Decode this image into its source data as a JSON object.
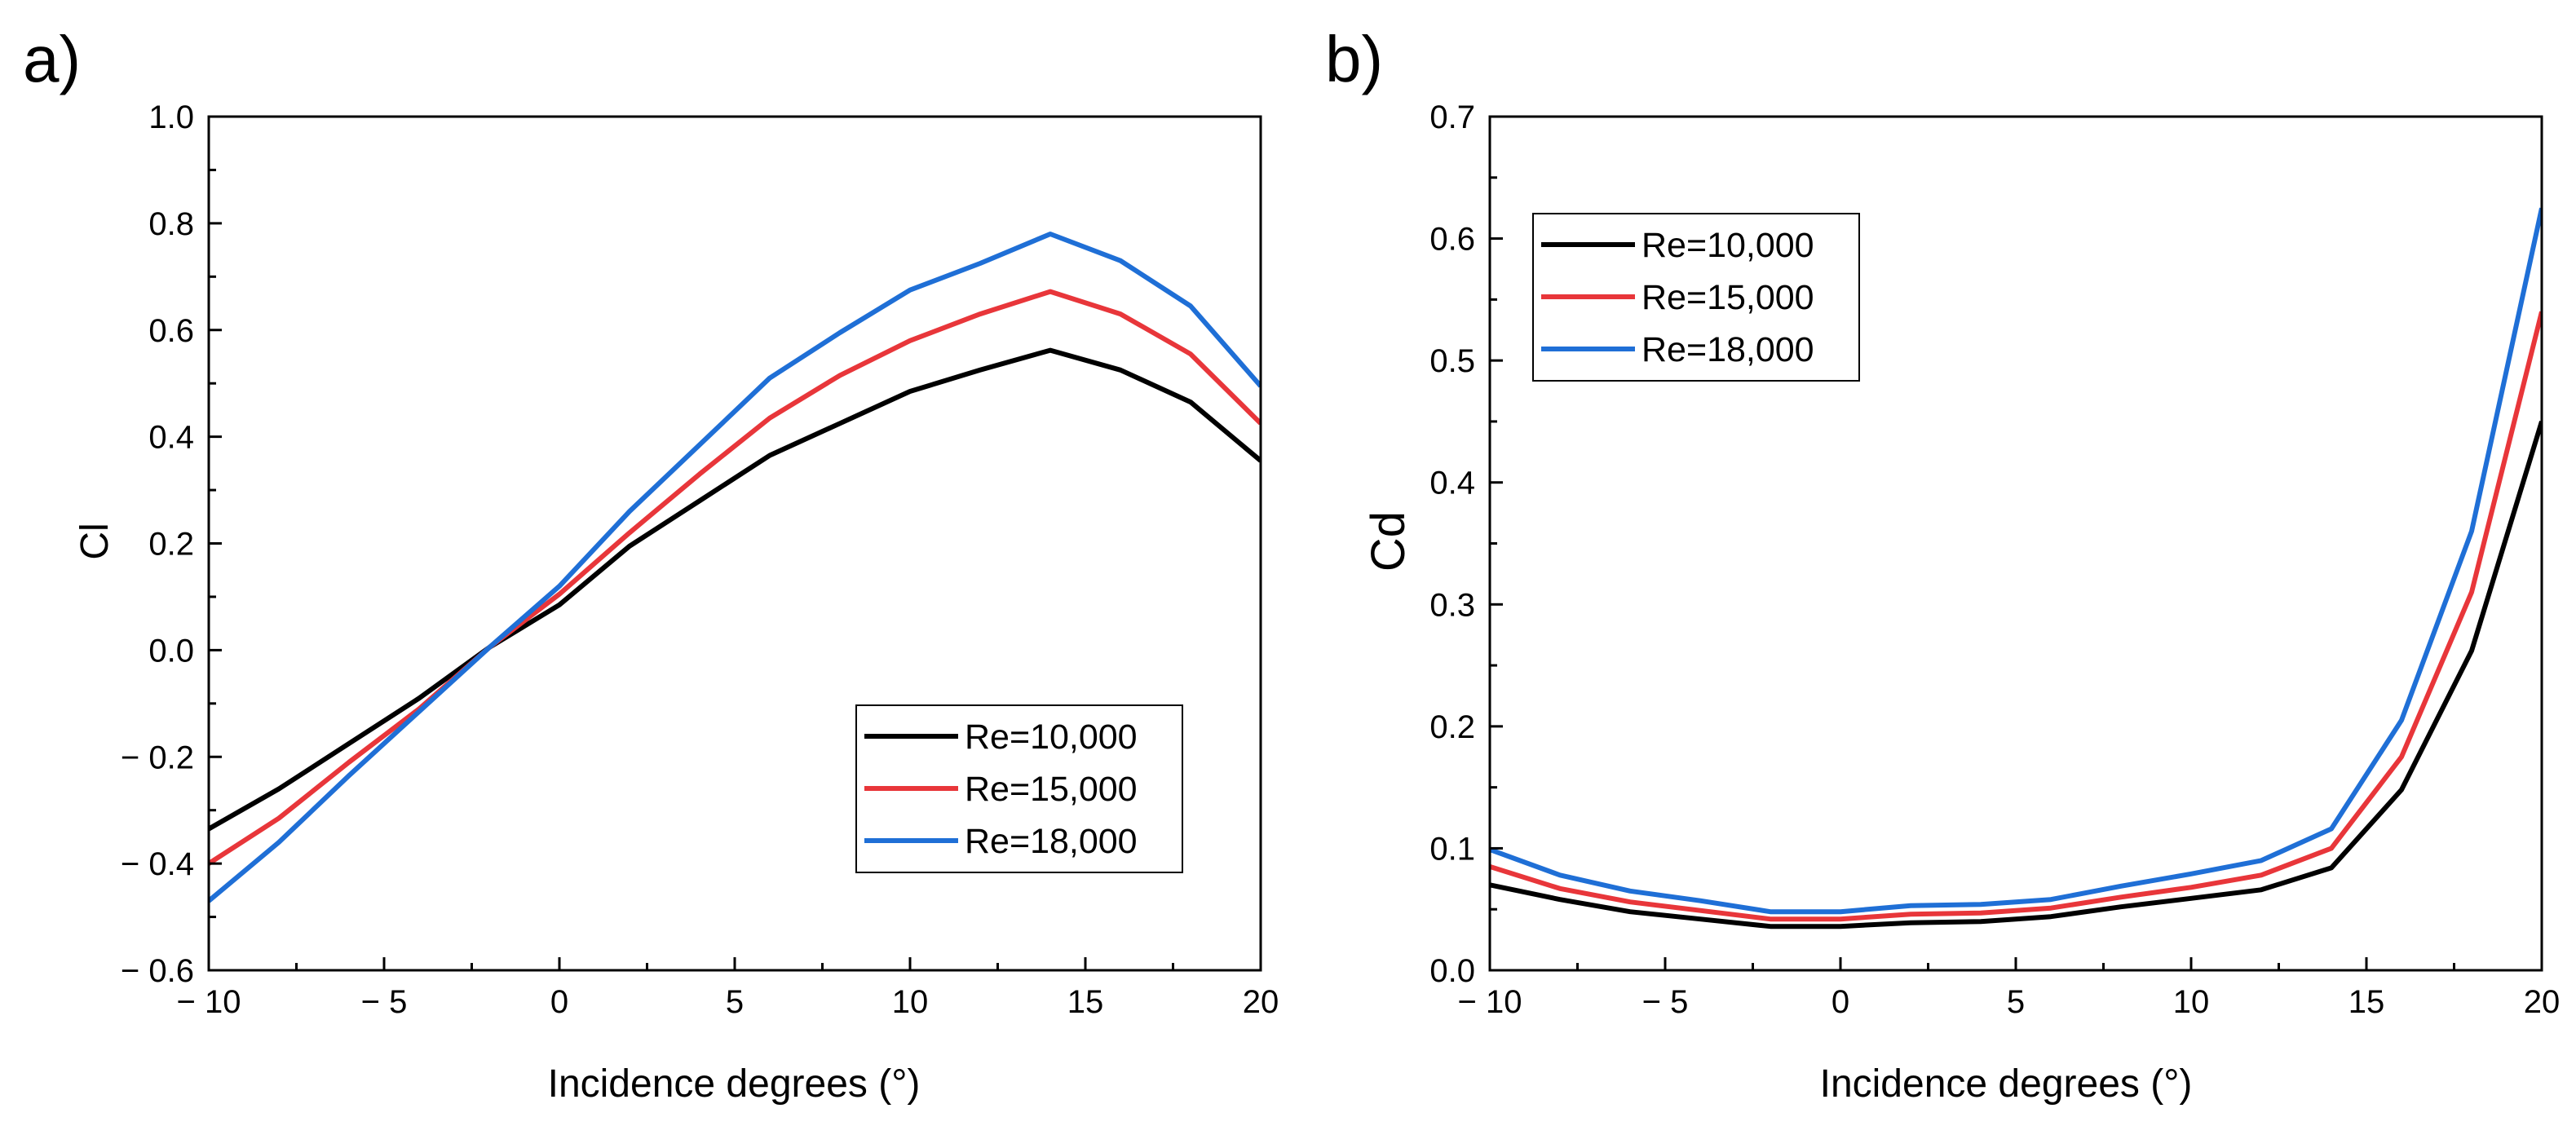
{
  "chart_data": [
    {
      "type": "line",
      "panel_label": "a)",
      "xlabel": "Incidence degrees (°)",
      "ylabel": "Cl",
      "xlim": [
        -10,
        20
      ],
      "ylim": [
        -0.6,
        1.0
      ],
      "xticks": [
        -10,
        -5,
        0,
        5,
        10,
        15,
        20
      ],
      "xtick_labels": [
        "− 10",
        "− 5",
        "0",
        "5",
        "10",
        "15",
        "20"
      ],
      "yticks": [
        -0.6,
        -0.4,
        -0.2,
        0.0,
        0.2,
        0.4,
        0.6,
        0.8,
        1.0
      ],
      "ytick_labels": [
        "− 0.6",
        "− 0.4",
        "− 0.2",
        "0.0",
        "0.2",
        "0.4",
        "0.6",
        "0.8",
        "1.0"
      ],
      "grid": false,
      "legend_position": "bottom-right",
      "x": [
        -10,
        -8,
        -6,
        -4,
        -2,
        0,
        2,
        4,
        6,
        8,
        10,
        12,
        14,
        16,
        18,
        20
      ],
      "series": [
        {
          "name": "Re=10,000",
          "color": "#000000",
          "values": [
            -0.335,
            -0.26,
            -0.175,
            -0.09,
            0.005,
            0.085,
            0.195,
            0.28,
            0.365,
            0.425,
            0.485,
            0.525,
            0.562,
            0.525,
            0.465,
            0.355
          ]
        },
        {
          "name": "Re=15,000",
          "color": "#e8363a",
          "values": [
            -0.4,
            -0.315,
            -0.21,
            -0.11,
            0.005,
            0.105,
            0.22,
            0.33,
            0.435,
            0.515,
            0.58,
            0.63,
            0.672,
            0.63,
            0.555,
            0.425
          ]
        },
        {
          "name": "Re=18,000",
          "color": "#1f6fd6",
          "values": [
            -0.47,
            -0.36,
            -0.235,
            -0.115,
            0.005,
            0.12,
            0.26,
            0.385,
            0.51,
            0.595,
            0.675,
            0.725,
            0.78,
            0.73,
            0.645,
            0.495
          ]
        }
      ]
    },
    {
      "type": "line",
      "panel_label": "b)",
      "xlabel": "Incidence degrees (°)",
      "ylabel": "Cd",
      "xlim": [
        -10,
        20
      ],
      "ylim": [
        0.0,
        0.7
      ],
      "xticks": [
        -10,
        -5,
        0,
        5,
        10,
        15,
        20
      ],
      "xtick_labels": [
        "− 10",
        "− 5",
        "0",
        "5",
        "10",
        "15",
        "20"
      ],
      "yticks": [
        0.0,
        0.1,
        0.2,
        0.3,
        0.4,
        0.5,
        0.6,
        0.7
      ],
      "ytick_labels": [
        "0.0",
        "0.1",
        "0.2",
        "0.3",
        "0.4",
        "0.5",
        "0.6",
        "0.7"
      ],
      "grid": false,
      "legend_position": "top-left",
      "x": [
        -10,
        -8,
        -6,
        -4,
        -2,
        0,
        2,
        4,
        6,
        8,
        10,
        12,
        14,
        16,
        18,
        20
      ],
      "series": [
        {
          "name": "Re=10,000",
          "color": "#000000",
          "values": [
            0.07,
            0.058,
            0.048,
            0.042,
            0.036,
            0.036,
            0.039,
            0.04,
            0.044,
            0.052,
            0.059,
            0.066,
            0.084,
            0.148,
            0.262,
            0.45
          ]
        },
        {
          "name": "Re=15,000",
          "color": "#e8363a",
          "values": [
            0.085,
            0.067,
            0.056,
            0.049,
            0.042,
            0.042,
            0.046,
            0.047,
            0.051,
            0.06,
            0.068,
            0.078,
            0.1,
            0.175,
            0.31,
            0.54
          ]
        },
        {
          "name": "Re=18,000",
          "color": "#1f6fd6",
          "values": [
            0.099,
            0.078,
            0.065,
            0.057,
            0.048,
            0.048,
            0.053,
            0.054,
            0.058,
            0.069,
            0.079,
            0.09,
            0.116,
            0.205,
            0.36,
            0.625
          ]
        }
      ]
    }
  ]
}
